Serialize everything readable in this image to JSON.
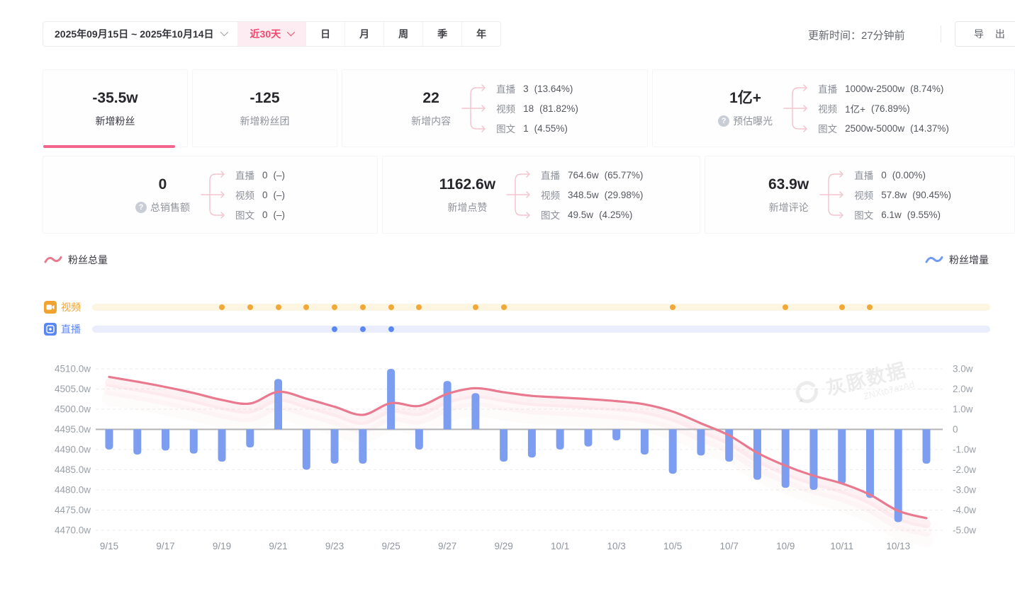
{
  "topbar": {
    "date_range": "2025年09月15日 ~ 2025年10月14日",
    "quick_range": "近30天",
    "period_tabs": [
      "日",
      "月",
      "周",
      "季",
      "年"
    ],
    "update_time": "更新时间：27分钟前",
    "export_label": "导 出"
  },
  "stats": {
    "cards": [
      {
        "value": "-35.5w",
        "label": "新增粉丝",
        "active": true
      },
      {
        "value": "-125",
        "label": "新增粉丝团"
      },
      {
        "value": "22",
        "label": "新增内容",
        "breakdown": [
          {
            "label": "直播",
            "value": "3",
            "pct": "(13.64%)"
          },
          {
            "label": "视频",
            "value": "18",
            "pct": "(81.82%)"
          },
          {
            "label": "图文",
            "value": "1",
            "pct": "(4.55%)"
          }
        ]
      },
      {
        "value": "1亿+",
        "label": "预估曝光",
        "help": true,
        "breakdown": [
          {
            "label": "直播",
            "value": "1000w-2500w",
            "pct": "(8.74%)"
          },
          {
            "label": "视频",
            "value": "1亿+",
            "pct": "(76.89%)"
          },
          {
            "label": "图文",
            "value": "2500w-5000w",
            "pct": "(14.37%)"
          }
        ]
      },
      {
        "value": "0",
        "label": "总销售额",
        "help": true,
        "breakdown": [
          {
            "label": "直播",
            "value": "0",
            "pct": "(–)"
          },
          {
            "label": "视频",
            "value": "0",
            "pct": "(–)"
          },
          {
            "label": "图文",
            "value": "0",
            "pct": "(–)"
          }
        ]
      },
      {
        "value": "1162.6w",
        "label": "新增点赞",
        "breakdown": [
          {
            "label": "直播",
            "value": "764.6w",
            "pct": "(65.77%)"
          },
          {
            "label": "视频",
            "value": "348.5w",
            "pct": "(29.98%)"
          },
          {
            "label": "图文",
            "value": "49.5w",
            "pct": "(4.25%)"
          }
        ]
      },
      {
        "value": "63.9w",
        "label": "新增评论",
        "breakdown": [
          {
            "label": "直播",
            "value": "0",
            "pct": "(0.00%)"
          },
          {
            "label": "视频",
            "value": "57.8w",
            "pct": "(90.45%)"
          },
          {
            "label": "图文",
            "value": "6.1w",
            "pct": "(9.55%)"
          }
        ]
      }
    ]
  },
  "legend": {
    "left": "粉丝总量",
    "right": "粉丝增量"
  },
  "timeline": {
    "video_label": "视频",
    "live_label": "直播",
    "video_dates": [
      "9/19",
      "9/20",
      "9/21",
      "9/22",
      "9/23",
      "9/24",
      "9/25",
      "9/26",
      "9/28",
      "9/29",
      "10/5",
      "10/9",
      "10/11",
      "10/12"
    ],
    "live_dates": [
      "9/23",
      "9/24",
      "9/25"
    ]
  },
  "watermark": {
    "brand": "灰豚数据",
    "code": "ZNXto7azAd"
  },
  "colors": {
    "pink": "#e8798f",
    "pink_strong": "#f2668b",
    "bar_blue": "#7d9df1",
    "orange": "#f0a839",
    "live_blue": "#5b87f5",
    "axis_text": "#9aa0a6"
  },
  "chart_data": {
    "type": "line+bar",
    "x": [
      "9/15",
      "9/16",
      "9/17",
      "9/18",
      "9/19",
      "9/20",
      "9/21",
      "9/22",
      "9/23",
      "9/24",
      "9/25",
      "9/26",
      "9/27",
      "9/28",
      "9/29",
      "9/30",
      "10/1",
      "10/2",
      "10/3",
      "10/4",
      "10/5",
      "10/6",
      "10/7",
      "10/8",
      "10/9",
      "10/10",
      "10/11",
      "10/12",
      "10/13",
      "10/14"
    ],
    "x_tick_every": 2,
    "series": [
      {
        "name": "粉丝总量",
        "type": "line",
        "axis": "left",
        "color": "#e8798f",
        "values": [
          4508.0,
          4506.8,
          4505.5,
          4504.0,
          4502.3,
          4501.4,
          4504.3,
          4502.6,
          4500.6,
          4498.6,
          4501.5,
          4500.8,
          4503.8,
          4505.2,
          4504.2,
          4503.3,
          4502.9,
          4502.5,
          4502.0,
          4501.2,
          4499.4,
          4496.5,
          4493.5,
          4489.2,
          4486.0,
          4483.5,
          4481.6,
          4478.8,
          4474.8,
          4473.0
        ]
      },
      {
        "name": "粉丝增量",
        "type": "bar",
        "axis": "right",
        "color": "#7d9df1",
        "values": [
          -1.0,
          -1.25,
          -1.05,
          -1.2,
          -1.6,
          -0.9,
          2.5,
          -2.0,
          -1.7,
          -1.7,
          3.0,
          -1.0,
          2.4,
          1.8,
          -1.6,
          -1.4,
          -1.0,
          -0.85,
          -0.55,
          -1.25,
          -2.2,
          -1.3,
          -1.6,
          -2.5,
          -2.9,
          -3.0,
          -2.7,
          -3.4,
          -4.6,
          -1.7
        ]
      }
    ],
    "left_axis": {
      "min": 4470,
      "max": 4510,
      "step": 5,
      "labels": [
        "4510.0w",
        "4505.0w",
        "4500.0w",
        "4495.0w",
        "4490.0w",
        "4485.0w",
        "4480.0w",
        "4475.0w",
        "4470.0w"
      ]
    },
    "right_axis": {
      "min": -5,
      "max": 3,
      "step": 1,
      "labels": [
        "3.0w",
        "2.0w",
        "1.0w",
        "0",
        "-1.0w",
        "-2.0w",
        "-3.0w",
        "-4.0w",
        "-5.0w"
      ]
    },
    "grid": "dashed-horizontal",
    "zero_line_at_left_value": 4495
  }
}
